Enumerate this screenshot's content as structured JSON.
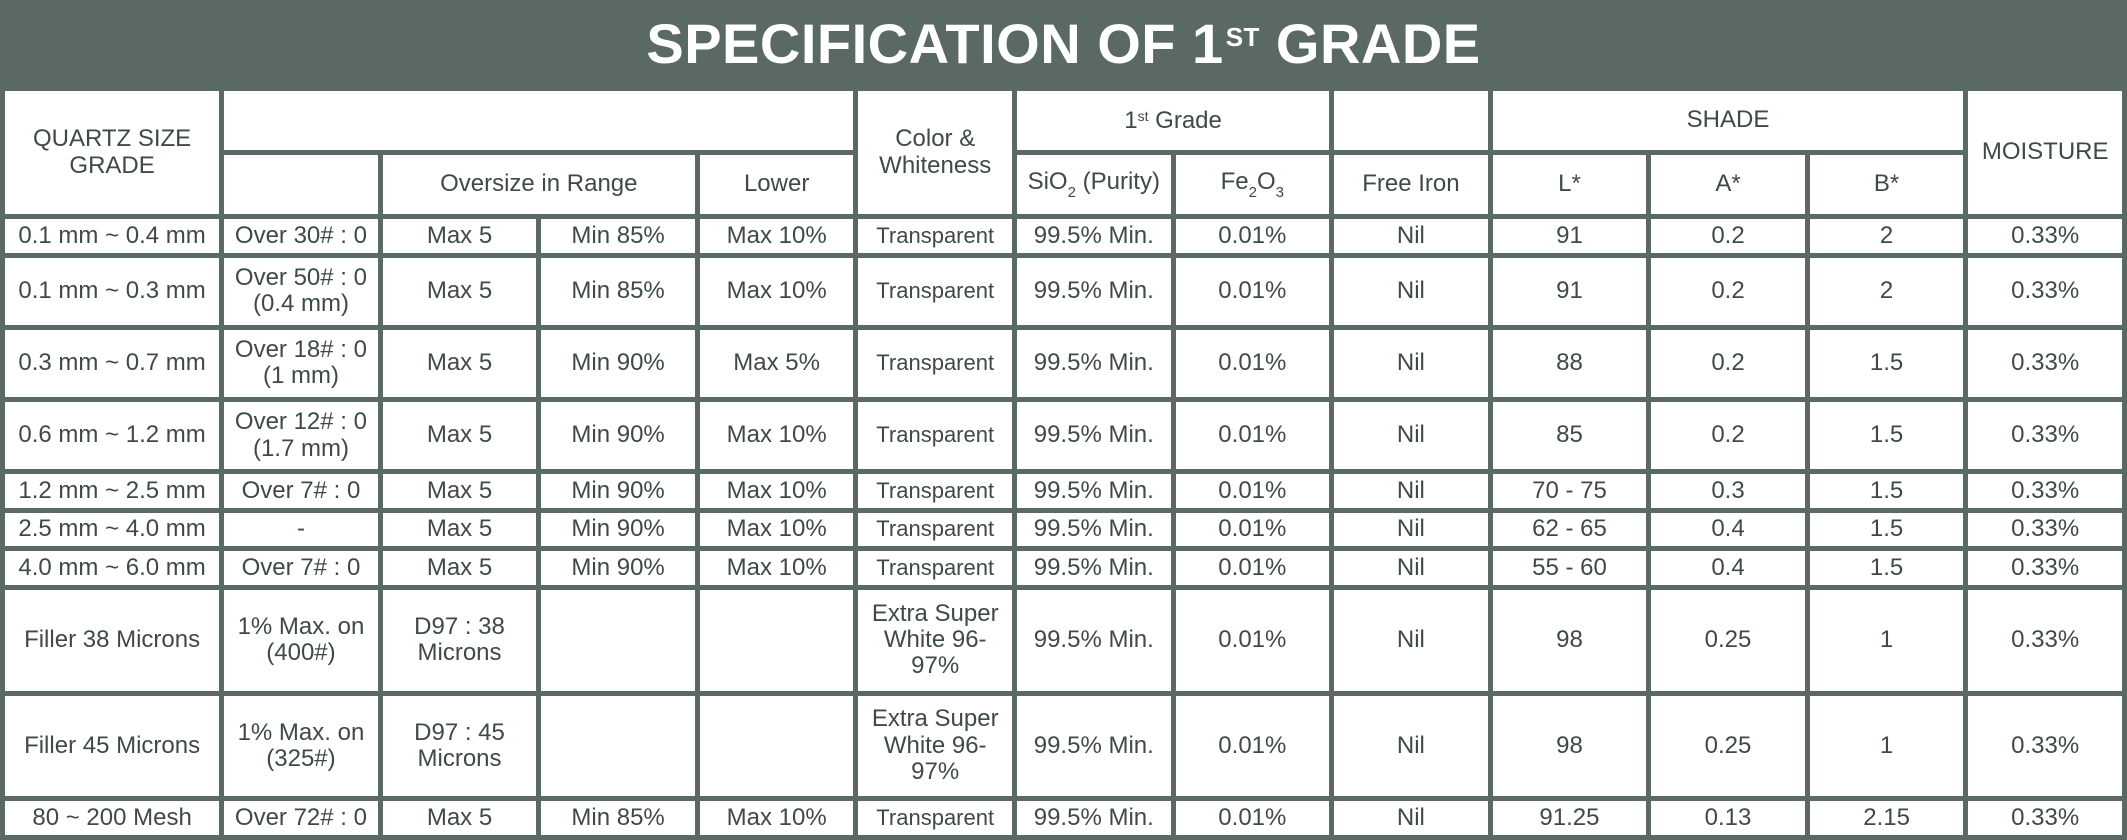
{
  "title": {
    "main": "SPECIFICATION OF 1",
    "sup": "ST",
    "rest": "GRADE"
  },
  "headers": {
    "quartz": "QUARTZ SIZE GRADE",
    "oversize": "Oversize in Range",
    "lower": "Lower",
    "color": "Color & Whiteness",
    "grade_num": "1",
    "grade_sup": "st",
    "grade_word": "Grade",
    "sio2_pre": "SiO",
    "sio2_sub": "2",
    "sio2_post": "(Purity)",
    "fe_pre": "Fe",
    "fe_sub": "2",
    "fe_mid": "O",
    "fe_sub2": "3",
    "free_iron": "Free Iron",
    "shade": "SHADE",
    "l": "L*",
    "a": "A*",
    "b": "B*",
    "moisture": "MOISTURE"
  },
  "rows": [
    {
      "size": "0.1 mm ~ 0.4 mm",
      "over": "Over  30# : 0",
      "max": "Max 5",
      "min": "Min 85%",
      "lower": "Max 10%",
      "color": "Transparent",
      "sio2": "99.5% Min.",
      "fe": "0.01%",
      "iron": "Nil",
      "l": "91",
      "a": "0.2",
      "b": "2",
      "moisture": "0.33%"
    },
    {
      "size": "0.1 mm ~ 0.3 mm",
      "over": "Over  50# : 0 (0.4 mm)",
      "max": "Max 5",
      "min": "Min 85%",
      "lower": "Max 10%",
      "color": "Transparent",
      "sio2": "99.5% Min.",
      "fe": "0.01%",
      "iron": "Nil",
      "l": "91",
      "a": "0.2",
      "b": "2",
      "moisture": "0.33%"
    },
    {
      "size": "0.3 mm ~ 0.7 mm",
      "over": "Over  18# : 0 (1 mm)",
      "max": "Max 5",
      "min": "Min 90%",
      "lower": "Max 5%",
      "color": "Transparent",
      "sio2": "99.5% Min.",
      "fe": "0.01%",
      "iron": "Nil",
      "l": "88",
      "a": "0.2",
      "b": "1.5",
      "moisture": "0.33%"
    },
    {
      "size": "0.6 mm ~ 1.2 mm",
      "over": "Over  12# : 0 (1.7 mm)",
      "max": "Max 5",
      "min": "Min 90%",
      "lower": "Max 10%",
      "color": "Transparent",
      "sio2": "99.5% Min.",
      "fe": "0.01%",
      "iron": "Nil",
      "l": "85",
      "a": "0.2",
      "b": "1.5",
      "moisture": "0.33%"
    },
    {
      "size": "1.2 mm ~ 2.5 mm",
      "over": "Over  7# : 0",
      "max": "Max 5",
      "min": "Min 90%",
      "lower": "Max 10%",
      "color": "Transparent",
      "sio2": "99.5% Min.",
      "fe": "0.01%",
      "iron": "Nil",
      "l": "70 - 75",
      "a": "0.3",
      "b": "1.5",
      "moisture": "0.33%"
    },
    {
      "size": "2.5 mm ~ 4.0 mm",
      "over": "-",
      "max": "Max 5",
      "min": "Min 90%",
      "lower": "Max 10%",
      "color": "Transparent",
      "sio2": "99.5% Min.",
      "fe": "0.01%",
      "iron": "Nil",
      "l": "62 - 65",
      "a": "0.4",
      "b": "1.5",
      "moisture": "0.33%"
    },
    {
      "size": "4.0 mm ~ 6.0 mm",
      "over": "Over  7# : 0",
      "max": "Max 5",
      "min": "Min 90%",
      "lower": "Max 10%",
      "color": "Transparent",
      "sio2": "99.5% Min.",
      "fe": "0.01%",
      "iron": "Nil",
      "l": "55 - 60",
      "a": "0.4",
      "b": "1.5",
      "moisture": "0.33%"
    },
    {
      "size": "Filler 38 Microns",
      "over": "1% Max. on (400#)",
      "max": "D97 : 38 Microns",
      "min": "",
      "lower": "",
      "color": "Extra Super White 96-97%",
      "sio2": "99.5% Min.",
      "fe": "0.01%",
      "iron": "Nil",
      "l": "98",
      "a": "0.25",
      "b": "1",
      "moisture": "0.33%"
    },
    {
      "size": "Filler 45 Microns",
      "over": "1% Max. on (325#)",
      "max": "D97 : 45 Microns",
      "min": "",
      "lower": "",
      "color": "Extra Super White 96-97%",
      "sio2": "99.5% Min.",
      "fe": "0.01%",
      "iron": "Nil",
      "l": "98",
      "a": "0.25",
      "b": "1",
      "moisture": "0.33%"
    },
    {
      "size": "80 ~ 200 Mesh",
      "over": "Over  72# : 0",
      "max": "Max 5",
      "min": "Min 85%",
      "lower": "Max 10%",
      "color": "Transparent",
      "sio2": "99.5% Min.",
      "fe": "0.01%",
      "iron": "Nil",
      "l": "91.25",
      "a": "0.13",
      "b": "2.15",
      "moisture": "0.33%"
    }
  ]
}
